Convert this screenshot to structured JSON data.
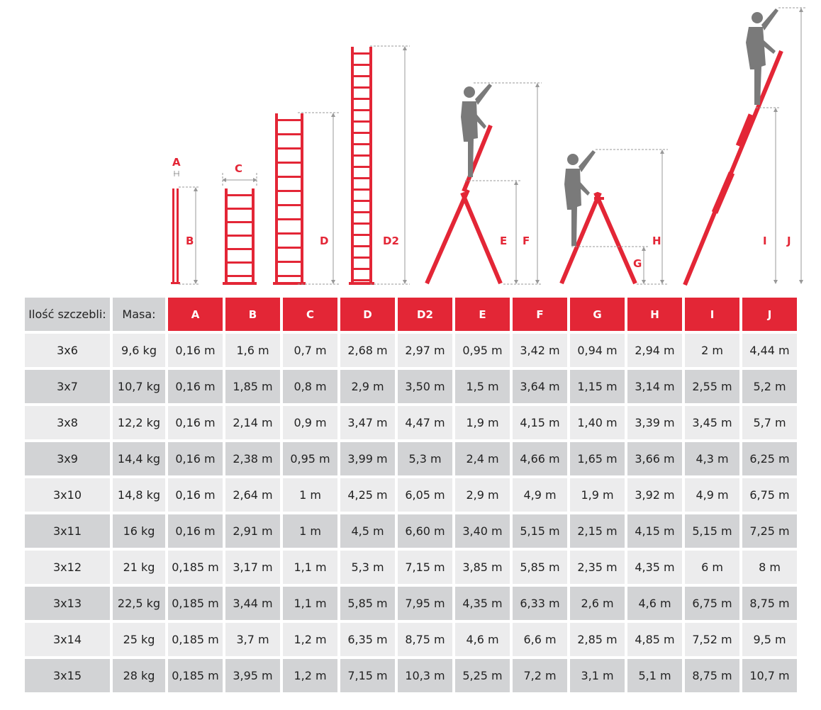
{
  "diagram": {
    "labels": {
      "A": "A",
      "B": "B",
      "C": "C",
      "D": "D",
      "D2": "D2",
      "E": "E",
      "F": "F",
      "G": "G",
      "H": "H",
      "I": "I",
      "J": "J"
    },
    "colors": {
      "ladder": "#e32636",
      "dimension": "#999999",
      "person": "#7a7a7a"
    }
  },
  "table": {
    "row_header_label": "Ilość szczebli:",
    "mass_header_label": "Masa:",
    "columns": [
      "A",
      "B",
      "C",
      "D",
      "D2",
      "E",
      "F",
      "G",
      "H",
      "I",
      "J"
    ],
    "rows": [
      {
        "steps": "3x6",
        "mass": "9,6 kg",
        "values": [
          "0,16 m",
          "1,6 m",
          "0,7 m",
          "2,68 m",
          "2,97 m",
          "0,95 m",
          "3,42 m",
          "0,94 m",
          "2,94 m",
          "2 m",
          "4,44 m"
        ]
      },
      {
        "steps": "3x7",
        "mass": "10,7 kg",
        "values": [
          "0,16 m",
          "1,85 m",
          "0,8 m",
          "2,9 m",
          "3,50 m",
          "1,5 m",
          "3,64 m",
          "1,15 m",
          "3,14 m",
          "2,55 m",
          "5,2 m"
        ]
      },
      {
        "steps": "3x8",
        "mass": "12,2 kg",
        "values": [
          "0,16 m",
          "2,14 m",
          "0,9 m",
          "3,47 m",
          "4,47 m",
          "1,9 m",
          "4,15 m",
          "1,40 m",
          "3,39 m",
          "3,45 m",
          "5,7 m"
        ]
      },
      {
        "steps": "3x9",
        "mass": "14,4 kg",
        "values": [
          "0,16 m",
          "2,38 m",
          "0,95 m",
          "3,99 m",
          "5,3 m",
          "2,4 m",
          "4,66 m",
          "1,65 m",
          "3,66 m",
          "4,3 m",
          "6,25 m"
        ]
      },
      {
        "steps": "3x10",
        "mass": "14,8 kg",
        "values": [
          "0,16 m",
          "2,64 m",
          "1 m",
          "4,25 m",
          "6,05 m",
          "2,9 m",
          "4,9 m",
          "1,9 m",
          "3,92 m",
          "4,9 m",
          "6,75 m"
        ]
      },
      {
        "steps": "3x11",
        "mass": "16 kg",
        "values": [
          "0,16 m",
          "2,91 m",
          "1 m",
          "4,5 m",
          "6,60 m",
          "3,40 m",
          "5,15 m",
          "2,15 m",
          "4,15 m",
          "5,15 m",
          "7,25 m"
        ]
      },
      {
        "steps": "3x12",
        "mass": "21 kg",
        "values": [
          "0,185 m",
          "3,17 m",
          "1,1 m",
          "5,3 m",
          "7,15 m",
          "3,85 m",
          "5,85 m",
          "2,35 m",
          "4,35 m",
          "6 m",
          "8 m"
        ]
      },
      {
        "steps": "3x13",
        "mass": "22,5 kg",
        "values": [
          "0,185 m",
          "3,44 m",
          "1,1 m",
          "5,85 m",
          "7,95 m",
          "4,35 m",
          "6,33 m",
          "2,6 m",
          "4,6 m",
          "6,75 m",
          "8,75 m"
        ]
      },
      {
        "steps": "3x14",
        "mass": "25 kg",
        "values": [
          "0,185 m",
          "3,7 m",
          "1,2 m",
          "6,35 m",
          "8,75 m",
          "4,6 m",
          "6,6 m",
          "2,85 m",
          "4,85 m",
          "7,52 m",
          "9,5 m"
        ]
      },
      {
        "steps": "3x15",
        "mass": "28 kg",
        "values": [
          "0,185 m",
          "3,95 m",
          "1,2 m",
          "7,15 m",
          "10,3 m",
          "5,25 m",
          "7,2 m",
          "3,1 m",
          "5,1 m",
          "8,75 m",
          "10,7 m"
        ]
      }
    ]
  }
}
